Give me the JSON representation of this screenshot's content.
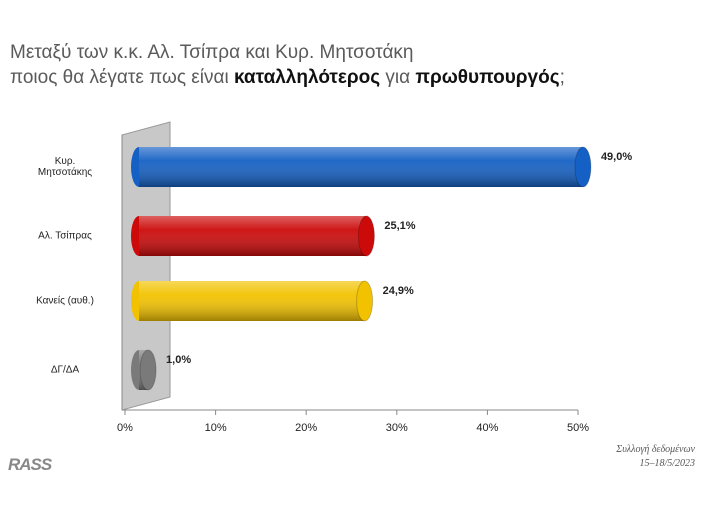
{
  "chart_data": {
    "type": "bar",
    "orientation": "horizontal",
    "title_segments": [
      {
        "text": "Μεταξύ των κ.κ. Αλ. Τσίπρα και Κυρ. Μητσοτάκη",
        "bold": false,
        "newline": false
      },
      {
        "text": "ποιος θα λέγατε πως είναι ",
        "bold": false,
        "newline": true
      },
      {
        "text": "καταλληλότερος",
        "bold": true,
        "newline": false
      },
      {
        "text": " για ",
        "bold": false,
        "newline": false
      },
      {
        "text": "πρωθυπουργός",
        "bold": true,
        "newline": false
      },
      {
        "text": ";",
        "bold": false,
        "newline": false
      }
    ],
    "categories": [
      "Κυρ.\nΜητσοτάκης",
      "Αλ. Τσίπρας",
      "Κανείς (αυθ.)",
      "ΔΓ/ΔΑ"
    ],
    "values": [
      49.0,
      25.1,
      24.9,
      1.0
    ],
    "value_labels": [
      "49,0%",
      "25,1%",
      "24,9%",
      "1,0%"
    ],
    "colors": [
      "#1560c4",
      "#cc0a0a",
      "#f2c200",
      "#7a7a7a"
    ],
    "xlim": [
      0,
      50
    ],
    "xticks": [
      {
        "value": 0,
        "label": "0%"
      },
      {
        "value": 10,
        "label": "10%"
      },
      {
        "value": 20,
        "label": "20%"
      },
      {
        "value": 30,
        "label": "30%"
      },
      {
        "value": 40,
        "label": "40%"
      },
      {
        "value": 50,
        "label": "50%"
      }
    ],
    "logo": "RASS",
    "source": [
      "Συλλογή δεδομένων",
      "15–18/5/2023"
    ]
  }
}
